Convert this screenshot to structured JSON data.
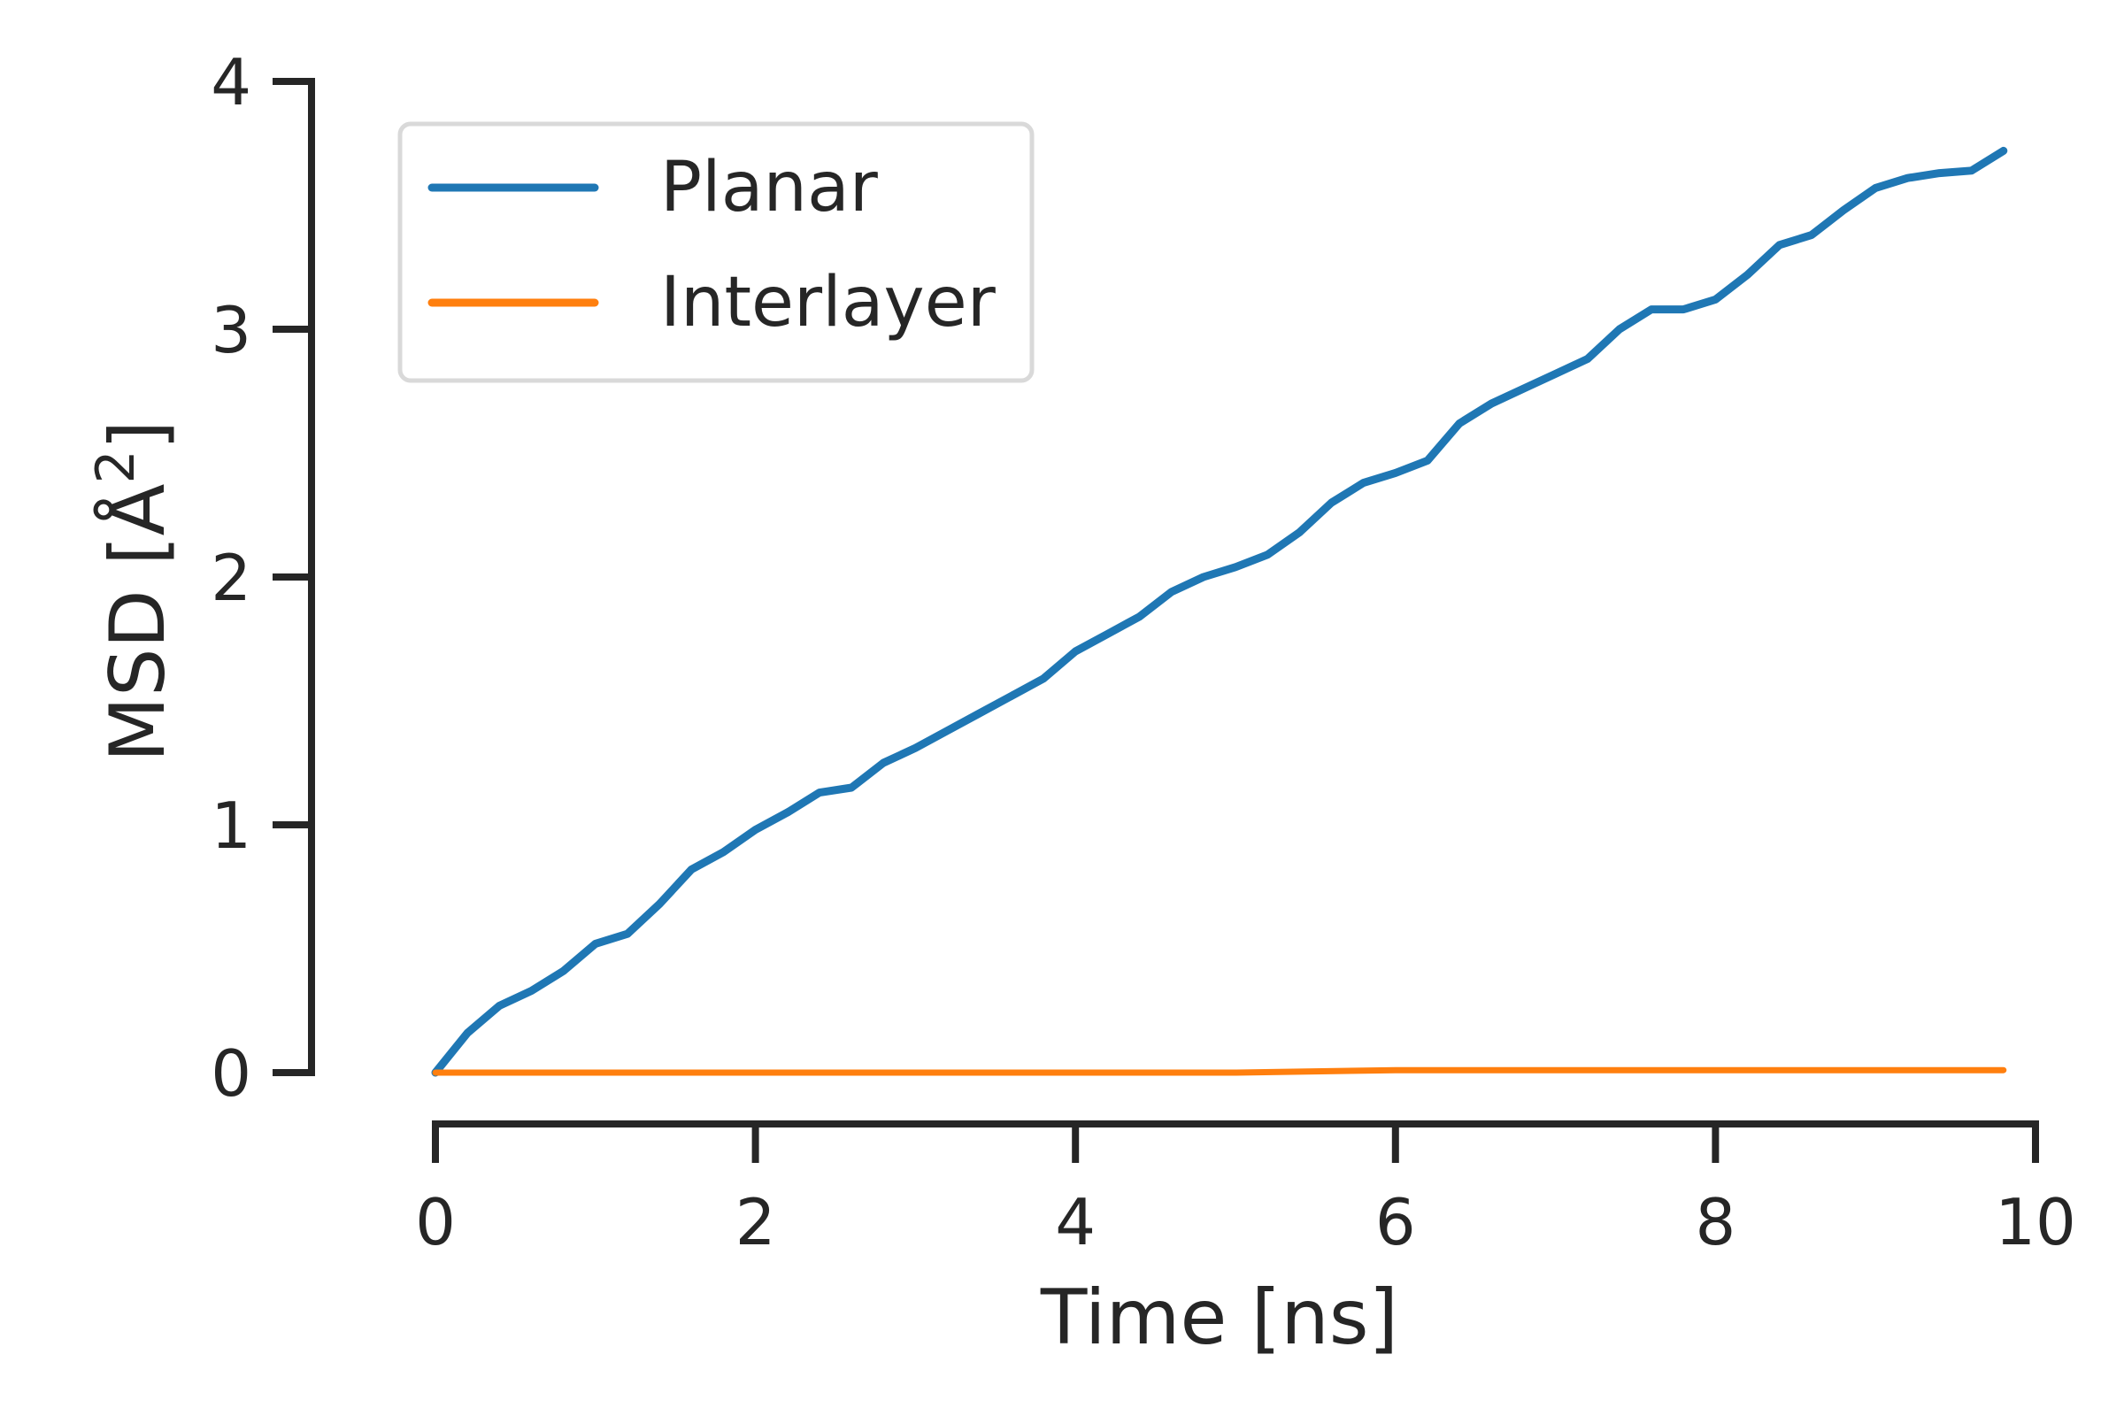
{
  "chart_data": {
    "type": "line",
    "title": "",
    "xlabel": "Time [ns]",
    "ylabel": "MSD [Å²]",
    "ylabel_main": "MSD [Å",
    "ylabel_sup": "2",
    "ylabel_close": "]",
    "xlim": [
      0,
      10
    ],
    "ylim": [
      0,
      4
    ],
    "xticks": [
      0,
      2,
      4,
      6,
      8,
      10
    ],
    "xtick_labels": [
      "0",
      "2",
      "4",
      "6",
      "8",
      "10"
    ],
    "yticks": [
      0,
      1,
      2,
      3,
      4
    ],
    "ytick_labels": [
      "0",
      "1",
      "2",
      "3",
      "4"
    ],
    "grid": false,
    "legend_position": "top-left",
    "series": [
      {
        "name": "Planar",
        "color": "#1f77b4",
        "x": [
          0,
          0.2,
          0.4,
          0.6,
          0.8,
          1.0,
          1.2,
          1.4,
          1.6,
          1.8,
          2.0,
          2.2,
          2.4,
          2.6,
          2.8,
          3.0,
          3.2,
          3.4,
          3.6,
          3.8,
          4.0,
          4.2,
          4.4,
          4.6,
          4.8,
          5.0,
          5.2,
          5.4,
          5.6,
          5.8,
          6.0,
          6.2,
          6.4,
          6.6,
          6.8,
          7.0,
          7.2,
          7.4,
          7.6,
          7.8,
          8.0,
          8.2,
          8.4,
          8.6,
          8.8,
          9.0,
          9.2,
          9.4,
          9.6,
          9.8
        ],
        "y": [
          0.0,
          0.16,
          0.27,
          0.33,
          0.41,
          0.52,
          0.56,
          0.68,
          0.82,
          0.89,
          0.98,
          1.05,
          1.13,
          1.15,
          1.25,
          1.31,
          1.38,
          1.45,
          1.52,
          1.59,
          1.7,
          1.77,
          1.84,
          1.94,
          2.0,
          2.04,
          2.09,
          2.18,
          2.3,
          2.38,
          2.42,
          2.47,
          2.62,
          2.7,
          2.76,
          2.82,
          2.88,
          3.0,
          3.08,
          3.08,
          3.12,
          3.22,
          3.34,
          3.38,
          3.48,
          3.57,
          3.61,
          3.63,
          3.64,
          3.72
        ]
      },
      {
        "name": "Interlayer",
        "color": "#ff7f0e",
        "x": [
          0,
          1,
          2,
          3,
          4,
          5,
          6,
          7,
          8,
          9,
          9.8
        ],
        "y": [
          0.0,
          0.0,
          0.0,
          0.0,
          0.0,
          0.0,
          0.01,
          0.01,
          0.01,
          0.01,
          0.01
        ]
      }
    ]
  }
}
